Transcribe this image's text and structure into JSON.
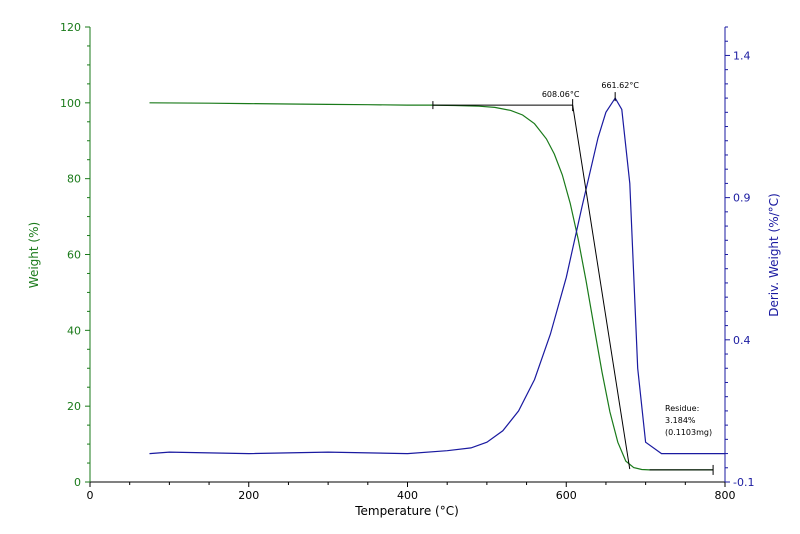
{
  "chart_data": {
    "type": "line",
    "xlabel": "Temperature (°C)",
    "ylabel_left": "Weight (%)",
    "ylabel_right": "Deriv. Weight (%/°C)",
    "xlim": [
      0,
      800
    ],
    "ylim_left": [
      0,
      120
    ],
    "ylim_right": [
      -0.1,
      1.5
    ],
    "x_ticks": [
      0,
      200,
      400,
      600,
      800
    ],
    "x_tick_labels": [
      "0",
      "200",
      "400",
      "600",
      "800"
    ],
    "y_left_ticks": [
      0,
      20,
      40,
      60,
      80,
      100,
      120
    ],
    "y_left_tick_labels": [
      "0",
      "20",
      "40",
      "60",
      "80",
      "100",
      "120"
    ],
    "y_right_ticks": [
      -0.1,
      0.4,
      0.9,
      1.4
    ],
    "y_right_tick_labels": [
      "-0.1",
      "0.4",
      "0.9",
      "1.4"
    ],
    "grid": false,
    "colors": {
      "weight": "#1a7a1a",
      "deriv": "#1a1aa0",
      "annotation": "#000000",
      "axis_left": "#1a7a1a",
      "axis_right": "#1a1aa0",
      "axis_bottom": "#000000"
    },
    "series": [
      {
        "axis": "left",
        "x": [
          75,
          150,
          200,
          250,
          300,
          350,
          400,
          430,
          460,
          490,
          510,
          530,
          545,
          560,
          575,
          585,
          595,
          605,
          615,
          625,
          635,
          645,
          655,
          665,
          675,
          685,
          695,
          705,
          750,
          785
        ],
        "values": [
          100,
          99.9,
          99.8,
          99.7,
          99.6,
          99.5,
          99.4,
          99.4,
          99.3,
          99.1,
          98.8,
          98.0,
          96.8,
          94.5,
          90.5,
          86.5,
          81.0,
          73.5,
          64.0,
          53.0,
          41.0,
          29.0,
          18.5,
          10.5,
          5.5,
          3.8,
          3.3,
          3.2,
          3.2,
          3.184
        ]
      },
      {
        "axis": "right",
        "x": [
          75,
          100,
          200,
          300,
          400,
          450,
          480,
          500,
          520,
          540,
          560,
          580,
          600,
          620,
          640,
          650,
          661.62,
          670,
          680,
          690,
          700,
          720,
          750,
          800
        ],
        "values": [
          0.0,
          0.005,
          0.0,
          0.005,
          0.0,
          0.01,
          0.02,
          0.04,
          0.08,
          0.15,
          0.26,
          0.42,
          0.62,
          0.87,
          1.11,
          1.2,
          1.25,
          1.21,
          0.95,
          0.3,
          0.04,
          0.0,
          0.0,
          0.0
        ]
      }
    ],
    "annotations": {
      "onset_label": "608.06°C",
      "peak_label": "661.62°C",
      "residue_label": "Residue:",
      "residue_value": "3.184%",
      "residue_mass": "(0.1103mg)",
      "onset_x": 608.06,
      "peak_x": 661.62,
      "baseline_start_x": 432,
      "baseline_y": 99.4,
      "tangent_end_x": 680,
      "tangent_end_y": 3.4,
      "residue_marker_x": 785,
      "residue_marker_y": 3.184
    }
  }
}
